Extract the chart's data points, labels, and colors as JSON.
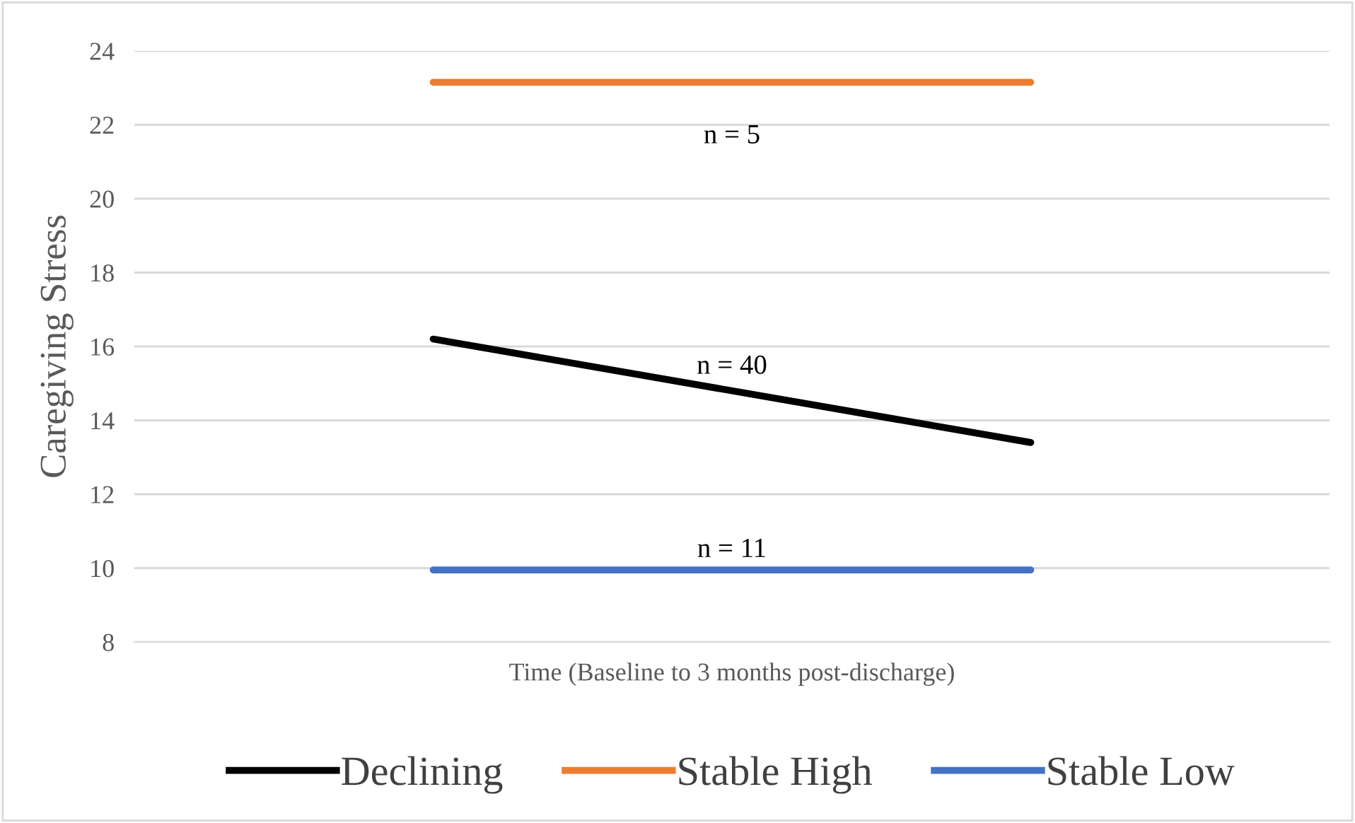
{
  "chart_data": {
    "type": "line",
    "xlabel": "Time (Baseline to 3 months post-discharge)",
    "ylabel": "Caregiving Stress",
    "categories": [
      null,
      null
    ],
    "series": [
      {
        "name": "Declining",
        "color": "#000000",
        "values": [
          16.2,
          13.4
        ]
      },
      {
        "name": "Stable High",
        "color": "#ed7d31",
        "values": [
          23.15,
          23.15
        ]
      },
      {
        "name": "Stable Low",
        "color": "#4472c4",
        "values": [
          9.95,
          9.95
        ]
      }
    ],
    "annotations": [
      "n = 5",
      "n = 40",
      "n = 11"
    ],
    "ylim": [
      8,
      24
    ],
    "yticks": [
      8,
      10,
      12,
      14,
      16,
      18,
      20,
      22,
      24
    ],
    "grid": "y",
    "legend": "bottom",
    "tick_labels": "y",
    "marker": "none",
    "line_style": "solid"
  }
}
